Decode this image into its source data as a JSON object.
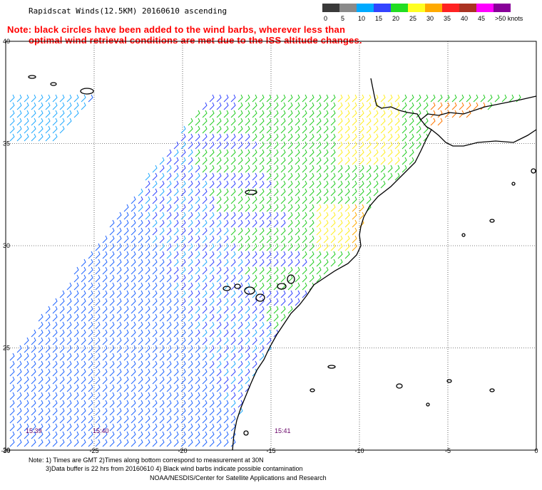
{
  "header": {
    "title": "Rapidscat Winds(12.5KM) 20160610 ascending",
    "note_line1": "Note: black circles have been added to the wind barbs, wherever less than",
    "note_line2": "optimal wind retrieval conditions are met due to the ISS altitude changes."
  },
  "color_scale": {
    "labels": [
      "0",
      "5",
      "10",
      "15",
      "20",
      "25",
      "30",
      "35",
      "40",
      "45",
      ">50 knots"
    ],
    "colors": [
      "#3a3a3a",
      "#8a8a8a",
      "#00aaff",
      "#3344ff",
      "#22dd22",
      "#ffff22",
      "#ffaa00",
      "#ff2222",
      "#aa3322",
      "#ff00ff",
      "#880099"
    ]
  },
  "map": {
    "lat_labels": [
      "40",
      "35",
      "30",
      "25",
      "20"
    ],
    "lon_labels": [
      "-30",
      "-25",
      "-20",
      "-15",
      "-10",
      "-5",
      "0"
    ],
    "time_labels": [
      {
        "text": "15:39",
        "color": "#660066"
      },
      {
        "text": "15:40",
        "color": "#660066"
      },
      {
        "text": "15:41",
        "color": "#660066"
      }
    ]
  },
  "footer": {
    "line1": "Note: 1) Times are GMT 2)Times along bottom correspond to measurement at 30N",
    "line2": "3)Data buffer is 22 hrs from 20160610 4) Black wind barbs indicate possible contamination",
    "line3": "NOAA/NESDIS/Center for Satellite Applications and Research"
  }
}
